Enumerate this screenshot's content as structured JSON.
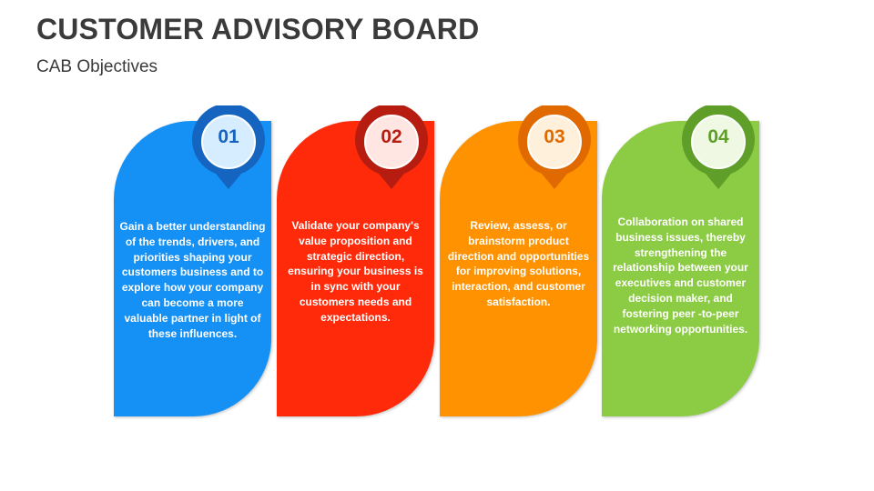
{
  "title": "CUSTOMER ADVISORY BOARD",
  "subtitle": "CAB Objectives",
  "cards": [
    {
      "number": "01",
      "text": "Gain a better understanding of the trends, drivers, and priorities shaping your customers business and to explore how your company can become a more valuable partner in light of these influences.",
      "color": "#1590f5",
      "ring_color": "#1565c0",
      "inner_color": "#d6ecff",
      "number_color": "#1565c0"
    },
    {
      "number": "02",
      "text": "Validate your company's value proposition and strategic direction, ensuring your business is in sync with your customers needs and expectations.",
      "color": "#ff2a0a",
      "ring_color": "#b71c10",
      "inner_color": "#ffe6e3",
      "number_color": "#b71c10"
    },
    {
      "number": "03",
      "text": "Review, assess, or brainstorm product direction and opportunities for improving solutions, interaction, and customer satisfaction.",
      "color": "#ff9200",
      "ring_color": "#e06a00",
      "inner_color": "#fff0dc",
      "number_color": "#e06a00"
    },
    {
      "number": "04",
      "text": "Collaboration on shared business issues, thereby strengthening the relationship between your executives and customer decision maker, and fostering peer -to-peer networking opportunities.",
      "color": "#8ccc44",
      "ring_color": "#5f9e28",
      "inner_color": "#eef8e2",
      "number_color": "#5f9e28"
    }
  ]
}
